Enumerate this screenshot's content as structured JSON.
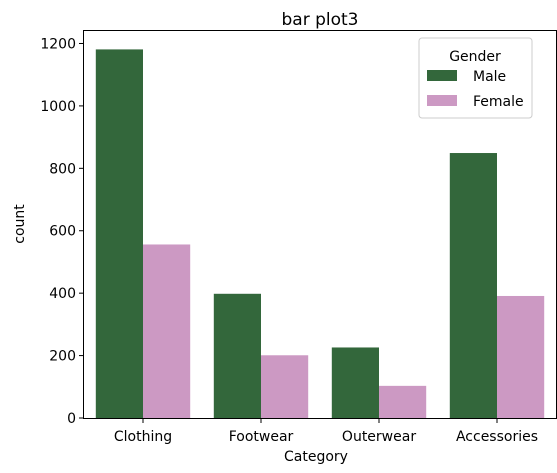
{
  "chart_data": {
    "type": "bar",
    "title": "bar plot3",
    "xlabel": "Category",
    "ylabel": "count",
    "categories": [
      "Clothing",
      "Footwear",
      "Outerwear",
      "Accessories"
    ],
    "series": [
      {
        "name": "Male",
        "values": [
          1181,
          398,
          226,
          849
        ],
        "color": "#33673b"
      },
      {
        "name": "Female",
        "values": [
          556,
          201,
          103,
          391
        ],
        "color": "#cc99c3"
      }
    ],
    "ylim": [
      0,
      1240
    ],
    "yticks": [
      0,
      200,
      400,
      600,
      800,
      1000,
      1200
    ],
    "grid": false,
    "legend": {
      "title": "Gender",
      "placement": "top-right"
    }
  }
}
